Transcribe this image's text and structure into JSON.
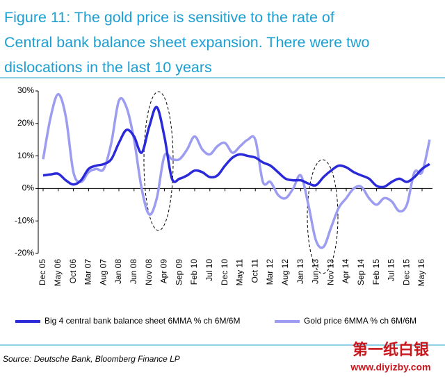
{
  "chart_data": {
    "type": "line",
    "title": [
      "Figure 11: The gold price is sensitive to the rate of",
      "Central bank balance sheet expansion. There were two",
      "dislocations in the last 10 years"
    ],
    "categories": [
      "Dec 05",
      null,
      "May 06",
      null,
      "Oct 06",
      null,
      "Mar 07",
      null,
      "Aug 07",
      null,
      "Jan 08",
      null,
      "Jun 08",
      null,
      "Nov 08",
      null,
      "Apr 09",
      null,
      "Sep 09",
      null,
      "Feb 10",
      null,
      "Jul 10",
      null,
      "Dec 10",
      null,
      "May 11",
      null,
      "Oct 11",
      null,
      "Mar 12",
      null,
      "Aug 12",
      null,
      "Jan 13",
      null,
      "Jun 13",
      null,
      "Nov 13",
      null,
      "Apr 14",
      null,
      "Sep 14",
      null,
      "Feb 15",
      null,
      "Jul 15",
      null,
      "Dec 15",
      null,
      "May 16",
      null
    ],
    "series": [
      {
        "name": "Big 4 central bank balance sheet 6MMA % ch 6M/6M",
        "color": "#2a2ad8",
        "values": [
          4,
          4.3,
          4.5,
          2.5,
          1.2,
          2.5,
          6,
          7,
          7.5,
          9,
          14,
          18,
          16,
          11,
          19,
          25,
          16,
          3,
          3,
          4,
          5.5,
          5,
          3.5,
          4,
          7,
          9.5,
          10.5,
          10,
          9.5,
          8,
          7,
          5,
          3,
          2.5,
          2.5,
          1.5,
          1,
          3.5,
          5.5,
          7,
          6.5,
          5,
          4,
          3,
          0.8,
          0.5,
          2,
          3,
          2,
          3.5,
          6,
          7.5
        ]
      },
      {
        "name": "Gold price 6MMA % ch 6M/6M",
        "color": "#9c9cf0",
        "values": [
          9,
          22,
          29,
          22,
          5,
          2,
          5,
          6,
          6,
          14,
          27,
          25,
          15,
          0,
          -8,
          -3,
          10,
          9,
          9,
          12,
          16,
          12,
          10.5,
          13,
          14,
          11,
          13,
          15,
          15,
          2,
          2,
          -2,
          -3,
          0,
          4,
          -5,
          -16,
          -18,
          -12,
          -6,
          -3,
          0,
          0.5,
          -3,
          -5,
          -3,
          -4,
          -7,
          -5,
          5,
          5,
          15
        ]
      }
    ],
    "ylim": [
      -20,
      30
    ],
    "yticks": [
      {
        "value": -20,
        "label": "-20%"
      },
      {
        "value": -10,
        "label": "-10%"
      },
      {
        "value": 0,
        "label": "0%"
      },
      {
        "value": 10,
        "label": "10%"
      },
      {
        "value": 20,
        "label": "20%"
      },
      {
        "value": 30,
        "label": "30%"
      }
    ],
    "source": "Source: Deutsche Bank, Bloomberg Finance LP",
    "watermark": [
      "第一纸白银",
      "www.diyizby.com"
    ]
  }
}
